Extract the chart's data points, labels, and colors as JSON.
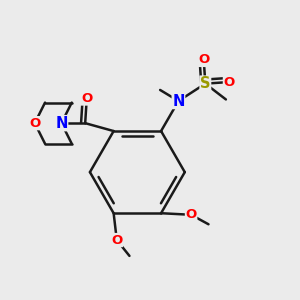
{
  "bg_color": "#ebebeb",
  "bond_color": "#1a1a1a",
  "bond_width": 1.8,
  "atom_colors": {
    "O": "#ff0000",
    "N": "#0000ff",
    "S": "#999900",
    "C": "#1a1a1a"
  },
  "font_size": 9.5
}
